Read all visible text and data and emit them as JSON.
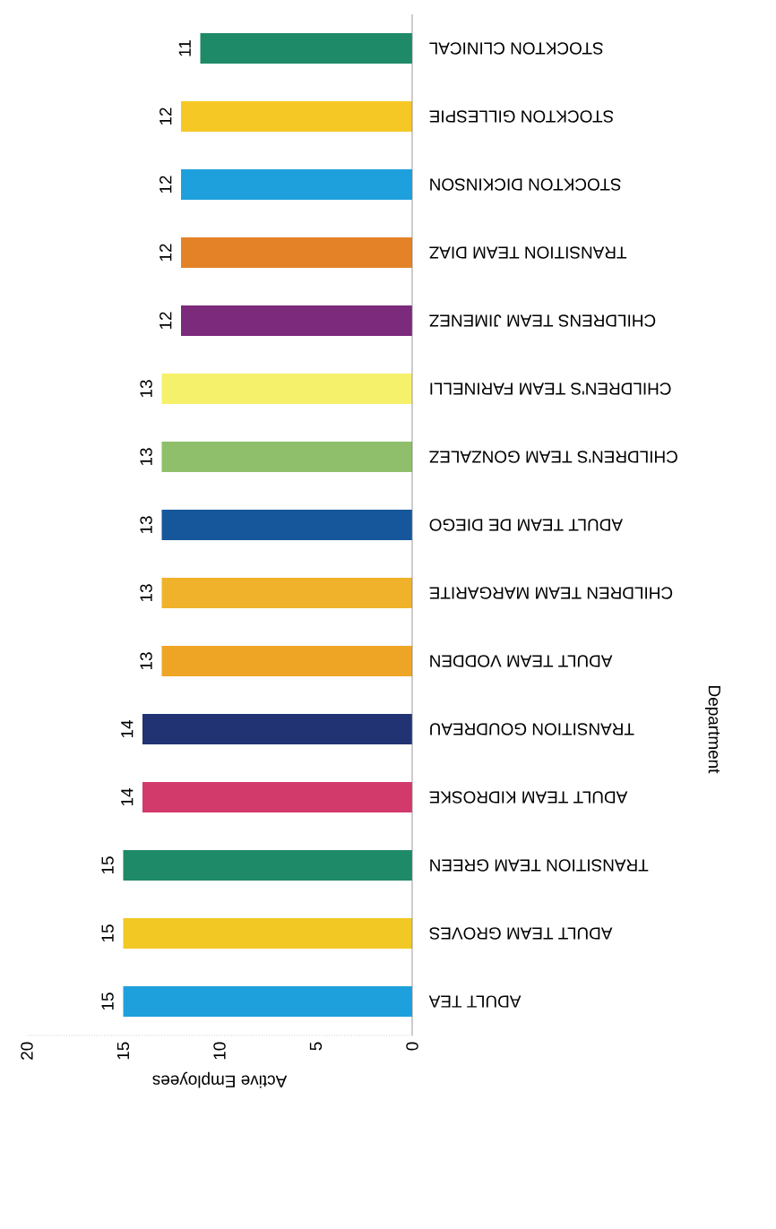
{
  "chart_data": {
    "type": "bar",
    "orientation": "horizontal",
    "xlabel": "Active Employees",
    "ylabel": "Department",
    "categories": [
      "STOCKTON CLINICAL",
      "STOCKTON GILLESPIE",
      "STOCKTON DICKINSON",
      "TRANSITION TEAM DIAZ",
      "CHILDRENS TEAM JIMENEZ",
      "CHILDREN'S TEAM FARINELLI",
      "CHILDREN'S TEAM GONZALEZ",
      "ADULT TEAM DE DIEGO",
      "CHILDREN TEAM MARGARITE",
      "ADULT TEAM VODDEN",
      "TRANSITION GOUDREAU",
      "ADULT TEAM KIDROSKE",
      "TRANSITION TEAM GREEN",
      "ADULT TEAM GROVES",
      "ADULT TEA"
    ],
    "values": [
      11,
      12,
      12,
      12,
      12,
      13,
      13,
      13,
      13,
      13,
      14,
      14,
      15,
      15,
      15
    ],
    "colors": [
      "#1f8a68",
      "#f5c825",
      "#1ea0dc",
      "#e38227",
      "#7b2a7c",
      "#f6f16a",
      "#8fbf6a",
      "#16579c",
      "#f0b22a",
      "#eea526",
      "#223374",
      "#d23a6b",
      "#1f8a68",
      "#f2c824",
      "#1ea0dc"
    ],
    "xlim": [
      20,
      0
    ],
    "xticks": [
      20,
      15,
      10,
      5,
      0
    ],
    "data_labels": true
  }
}
